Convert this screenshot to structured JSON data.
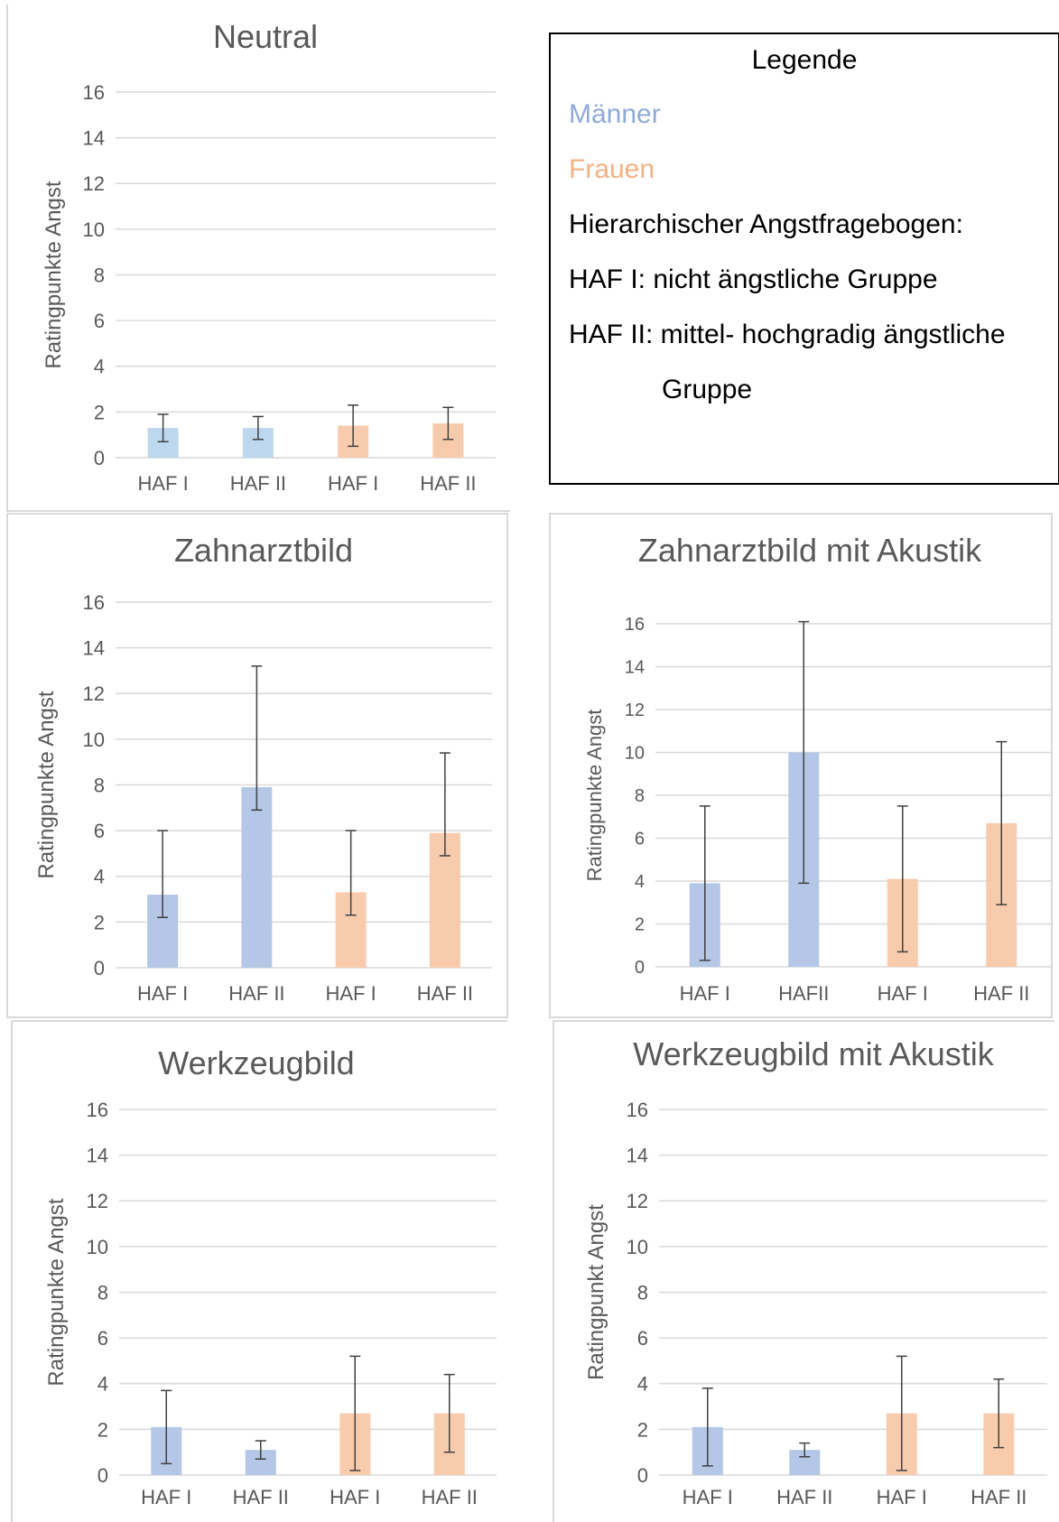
{
  "colors": {
    "maenner_neutral": "#bdd7ee",
    "maenner": "#b4c7e7",
    "frauen": "#f8cbad",
    "axis_text": "#595959",
    "grid": "#d9d9d9",
    "error_bar": "#404040",
    "panel_border": "#d9d9d9"
  },
  "legend": {
    "title": "Legende",
    "maenner": "Männer",
    "frauen": "Frauen",
    "haf_heading": "Hierarchischer Angstfragebogen:",
    "haf1": "HAF I: nicht ängstliche Gruppe",
    "haf2": "HAF II: mittel- hochgradig ängstliche",
    "haf2_cont": "Gruppe"
  },
  "chart_data": [
    {
      "id": "neutral",
      "type": "bar",
      "title": "Neutral",
      "ylabel": "Ratingpunkte Angst",
      "ylim": [
        0,
        16
      ],
      "yticks": [
        "0",
        "2",
        "4",
        "6",
        "8",
        "10",
        "12",
        "14",
        "16"
      ],
      "categories": [
        "HAF I",
        "HAF II",
        "HAF I",
        "HAF II"
      ],
      "values": [
        1.3,
        1.3,
        1.4,
        1.5
      ],
      "error_low": [
        0.7,
        0.8,
        0.5,
        0.8
      ],
      "error_high": [
        1.9,
        1.8,
        2.3,
        2.2
      ],
      "groups": [
        "maenner_neutral",
        "maenner_neutral",
        "frauen",
        "frauen"
      ]
    },
    {
      "id": "zahnarztbild",
      "type": "bar",
      "title": "Zahnarztbild",
      "ylabel": "Ratingpunkte Angst",
      "ylim": [
        0,
        16
      ],
      "yticks": [
        "0",
        "2",
        "4",
        "6",
        "8",
        "10",
        "12",
        "14",
        "16"
      ],
      "categories": [
        "HAF I",
        "HAF II",
        "HAF I",
        "HAF II"
      ],
      "values": [
        3.2,
        7.9,
        3.3,
        5.9
      ],
      "error_low": [
        2.2,
        6.9,
        2.3,
        4.9
      ],
      "error_high": [
        6.0,
        13.2,
        6.0,
        9.4
      ],
      "groups": [
        "maenner",
        "maenner",
        "frauen",
        "frauen"
      ]
    },
    {
      "id": "zahnarztbild-akustik",
      "type": "bar",
      "title": "Zahnarztbild mit Akustik",
      "ylabel": "Ratingpunkte Angst",
      "ylim": [
        0,
        16
      ],
      "yticks": [
        "0",
        "2",
        "4",
        "6",
        "8",
        "10",
        "12",
        "14",
        "16"
      ],
      "categories": [
        "HAF I",
        "HAFII",
        "HAF I",
        "HAF II"
      ],
      "values": [
        3.9,
        10.0,
        4.1,
        6.7
      ],
      "error_low": [
        0.3,
        3.9,
        0.7,
        2.9
      ],
      "error_high": [
        7.5,
        16.1,
        7.5,
        10.5
      ],
      "groups": [
        "maenner",
        "maenner",
        "frauen",
        "frauen"
      ]
    },
    {
      "id": "werkzeugbild",
      "type": "bar",
      "title": "Werkzeugbild",
      "ylabel": "Ratingpunkte Angst",
      "ylim": [
        0,
        16
      ],
      "yticks": [
        "0",
        "2",
        "4",
        "6",
        "8",
        "10",
        "12",
        "14",
        "16"
      ],
      "categories": [
        "HAF I",
        "HAF II",
        "HAF I",
        "HAF II"
      ],
      "values": [
        2.1,
        1.1,
        2.7,
        2.7
      ],
      "error_low": [
        0.5,
        0.7,
        0.2,
        1.0
      ],
      "error_high": [
        3.7,
        1.5,
        5.2,
        4.4
      ],
      "groups": [
        "maenner",
        "maenner",
        "frauen",
        "frauen"
      ]
    },
    {
      "id": "werkzeugbild-akustik",
      "type": "bar",
      "title": "Werkzeugbild mit Akustik",
      "ylabel": "Ratingpunkt Angst",
      "ylim": [
        0,
        16
      ],
      "yticks": [
        "0",
        "2",
        "4",
        "6",
        "8",
        "10",
        "12",
        "14",
        "16"
      ],
      "categories": [
        "HAF I",
        "HAF II",
        "HAF I",
        "HAF II"
      ],
      "values": [
        2.1,
        1.1,
        2.7,
        2.7
      ],
      "error_low": [
        0.4,
        0.8,
        0.2,
        1.2
      ],
      "error_high": [
        3.8,
        1.4,
        5.2,
        4.2
      ],
      "groups": [
        "maenner",
        "maenner",
        "frauen",
        "frauen"
      ]
    }
  ]
}
